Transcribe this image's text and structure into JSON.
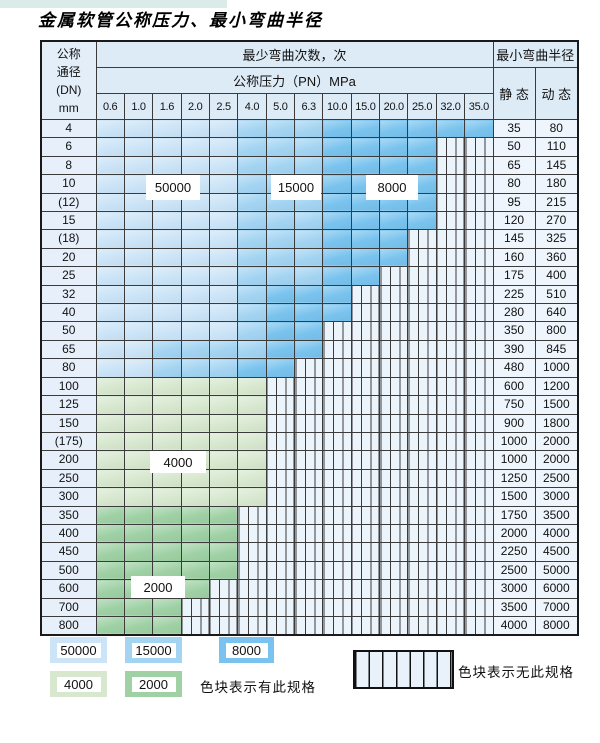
{
  "page": {
    "title": "金属软管公称压力、最小弯曲半径"
  },
  "table": {
    "corner": [
      "公称",
      "通径",
      "(DN)",
      "mm"
    ],
    "bend_header": "最少弯曲次数，次",
    "pressure_header": "公称压力（PN）MPa",
    "radius_header": "最小弯曲半径",
    "static_label": "静 态",
    "dynamic_label": "动 态",
    "pressures": [
      "0.6",
      "1.0",
      "1.6",
      "2.0",
      "2.5",
      "4.0",
      "5.0",
      "6.3",
      "10.0",
      "15.0",
      "20.0",
      "25.0",
      "32.0",
      "35.0"
    ],
    "rows": [
      {
        "dn": "4",
        "static": "35",
        "dynamic": "80",
        "bands": [
          [
            "b1",
            5
          ],
          [
            "b2",
            3
          ],
          [
            "b3",
            6
          ]
        ],
        "hatch": 0
      },
      {
        "dn": "6",
        "static": "50",
        "dynamic": "110",
        "bands": [
          [
            "b1",
            5
          ],
          [
            "b2",
            3
          ],
          [
            "b3",
            4
          ]
        ],
        "hatch": 2
      },
      {
        "dn": "8",
        "static": "65",
        "dynamic": "145",
        "bands": [
          [
            "b1",
            5
          ],
          [
            "b2",
            3
          ],
          [
            "b3",
            4
          ]
        ],
        "hatch": 2
      },
      {
        "dn": "10",
        "static": "80",
        "dynamic": "180",
        "bands": [
          [
            "b1",
            5
          ],
          [
            "b2",
            3
          ],
          [
            "b3",
            4
          ]
        ],
        "hatch": 2
      },
      {
        "dn": "(12)",
        "static": "95",
        "dynamic": "215",
        "bands": [
          [
            "b1",
            5
          ],
          [
            "b2",
            3
          ],
          [
            "b3",
            4
          ]
        ],
        "hatch": 2
      },
      {
        "dn": "15",
        "static": "120",
        "dynamic": "270",
        "bands": [
          [
            "b1",
            5
          ],
          [
            "b2",
            3
          ],
          [
            "b3",
            4
          ]
        ],
        "hatch": 2
      },
      {
        "dn": "(18)",
        "static": "145",
        "dynamic": "325",
        "bands": [
          [
            "b1",
            5
          ],
          [
            "b2",
            3
          ],
          [
            "b3",
            3
          ]
        ],
        "hatch": 3
      },
      {
        "dn": "20",
        "static": "160",
        "dynamic": "360",
        "bands": [
          [
            "b1",
            5
          ],
          [
            "b2",
            3
          ],
          [
            "b3",
            3
          ]
        ],
        "hatch": 3
      },
      {
        "dn": "25",
        "static": "175",
        "dynamic": "400",
        "bands": [
          [
            "b1",
            5
          ],
          [
            "b2",
            3
          ],
          [
            "b3",
            2
          ]
        ],
        "hatch": 4
      },
      {
        "dn": "32",
        "static": "225",
        "dynamic": "510",
        "bands": [
          [
            "b1",
            5
          ],
          [
            "b2",
            1
          ],
          [
            "b3",
            3
          ]
        ],
        "hatch": 5
      },
      {
        "dn": "40",
        "static": "280",
        "dynamic": "640",
        "bands": [
          [
            "b1",
            5
          ],
          [
            "b2",
            1
          ],
          [
            "b3",
            3
          ]
        ],
        "hatch": 5
      },
      {
        "dn": "50",
        "static": "350",
        "dynamic": "800",
        "bands": [
          [
            "b1",
            5
          ],
          [
            "b2",
            1
          ],
          [
            "b3",
            2
          ]
        ],
        "hatch": 6
      },
      {
        "dn": "65",
        "static": "390",
        "dynamic": "845",
        "bands": [
          [
            "b1",
            2
          ],
          [
            "b2",
            4
          ],
          [
            "b3",
            2
          ]
        ],
        "hatch": 6
      },
      {
        "dn": "80",
        "static": "480",
        "dynamic": "1000",
        "bands": [
          [
            "b1",
            2
          ],
          [
            "b2",
            3
          ],
          [
            "b3",
            2
          ]
        ],
        "hatch": 7
      },
      {
        "dn": "100",
        "static": "600",
        "dynamic": "1200",
        "bands": [
          [
            "g1",
            6
          ]
        ],
        "hatch": 8
      },
      {
        "dn": "125",
        "static": "750",
        "dynamic": "1500",
        "bands": [
          [
            "g1",
            6
          ]
        ],
        "hatch": 8
      },
      {
        "dn": "150",
        "static": "900",
        "dynamic": "1800",
        "bands": [
          [
            "g1",
            6
          ]
        ],
        "hatch": 8
      },
      {
        "dn": "(175)",
        "static": "1000",
        "dynamic": "2000",
        "bands": [
          [
            "g1",
            6
          ]
        ],
        "hatch": 8
      },
      {
        "dn": "200",
        "static": "1000",
        "dynamic": "2000",
        "bands": [
          [
            "g1",
            6
          ]
        ],
        "hatch": 8
      },
      {
        "dn": "250",
        "static": "1250",
        "dynamic": "2500",
        "bands": [
          [
            "g1",
            6
          ]
        ],
        "hatch": 8
      },
      {
        "dn": "300",
        "static": "1500",
        "dynamic": "3000",
        "bands": [
          [
            "g1",
            6
          ]
        ],
        "hatch": 8
      },
      {
        "dn": "350",
        "static": "1750",
        "dynamic": "3500",
        "bands": [
          [
            "g2",
            5
          ]
        ],
        "hatch": 9
      },
      {
        "dn": "400",
        "static": "2000",
        "dynamic": "4000",
        "bands": [
          [
            "g2",
            5
          ]
        ],
        "hatch": 9
      },
      {
        "dn": "450",
        "static": "2250",
        "dynamic": "4500",
        "bands": [
          [
            "g2",
            5
          ]
        ],
        "hatch": 9
      },
      {
        "dn": "500",
        "static": "2500",
        "dynamic": "5000",
        "bands": [
          [
            "g2",
            5
          ]
        ],
        "hatch": 9
      },
      {
        "dn": "600",
        "static": "3000",
        "dynamic": "6000",
        "bands": [
          [
            "g2",
            4
          ]
        ],
        "hatch": 10
      },
      {
        "dn": "700",
        "static": "3500",
        "dynamic": "7000",
        "bands": [
          [
            "g2",
            3
          ]
        ],
        "hatch": 11
      },
      {
        "dn": "800",
        "static": "4000",
        "dynamic": "8000",
        "bands": [
          [
            "g2",
            3
          ]
        ],
        "hatch": 11
      }
    ]
  },
  "overlays": [
    {
      "text": "50000"
    },
    {
      "text": "15000"
    },
    {
      "text": "8000"
    },
    {
      "text": "4000"
    },
    {
      "text": "2000"
    }
  ],
  "legend": {
    "items": [
      {
        "label": "50000",
        "color_class": "b1"
      },
      {
        "label": "15000",
        "color_class": "b2"
      },
      {
        "label": "8000",
        "color_class": "b3"
      },
      {
        "label": "4000",
        "color_class": "g1"
      },
      {
        "label": "2000",
        "color_class": "g2"
      }
    ],
    "has_spec_text": "色块表示有此规格",
    "no_spec_text": "色块表示无此规格"
  },
  "colors": {
    "band_50000": "#cbe4f7",
    "band_15000": "#a3d4f2",
    "band_8000": "#79c3ee",
    "band_4000": "#d7e8cf",
    "band_2000": "#9fd1a5",
    "hatch_bg": "#ebf3fb",
    "grid_line": "#3b3b3b"
  }
}
